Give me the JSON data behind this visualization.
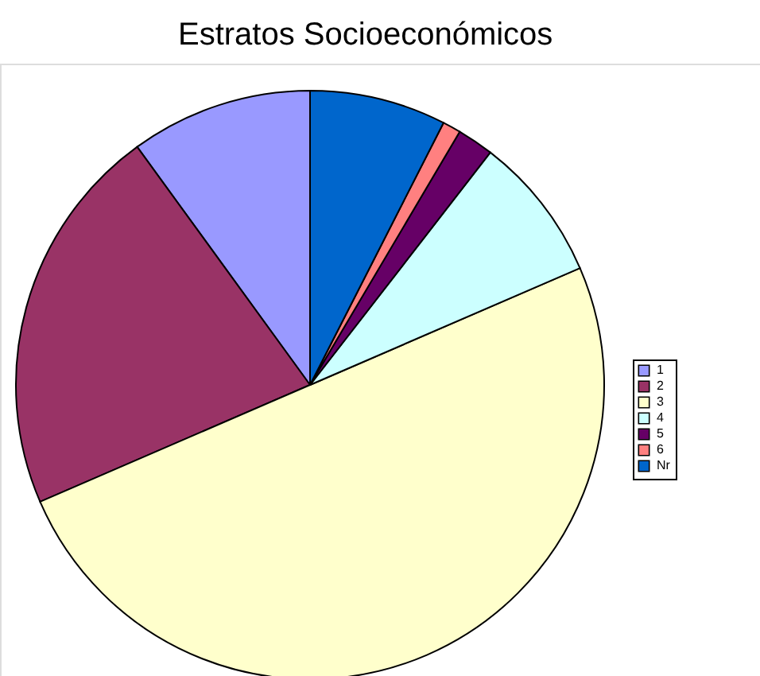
{
  "chart_data": {
    "type": "pie",
    "title": "Estratos Socioeconómicos",
    "categories": [
      "1",
      "2",
      "3",
      "4",
      "5",
      "6",
      "Nr"
    ],
    "values": [
      10,
      21.5,
      50,
      8,
      2,
      1,
      7.5
    ],
    "colors": [
      "#9999ff",
      "#993366",
      "#ffffcc",
      "#ccffff",
      "#660066",
      "#ff8080",
      "#0066cc"
    ],
    "legend": "right"
  }
}
